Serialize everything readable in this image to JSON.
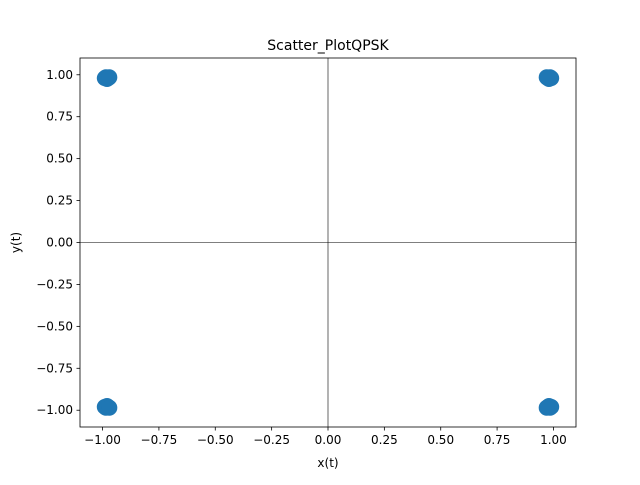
{
  "chart_data": {
    "type": "scatter",
    "title": "Scatter_PlotQPSK",
    "xlabel": "x(t)",
    "ylabel": "y(t)",
    "xlim": [
      -1.1,
      1.1
    ],
    "ylim": [
      -1.1,
      1.1
    ],
    "xticks": [
      -1.0,
      -0.75,
      -0.5,
      -0.25,
      0.0,
      0.25,
      0.5,
      0.75,
      1.0
    ],
    "xtick_labels": [
      "−1.00",
      "−0.75",
      "−0.50",
      "−0.25",
      "0.00",
      "0.25",
      "0.50",
      "0.75",
      "1.00"
    ],
    "yticks": [
      1.0,
      0.75,
      0.5,
      0.25,
      0.0,
      -0.25,
      -0.5,
      -0.75,
      -1.0
    ],
    "ytick_labels": [
      "1.00",
      "0.75",
      "0.50",
      "0.25",
      "0.00",
      "−0.25",
      "−0.50",
      "−0.75",
      "−1.00"
    ],
    "grid": false,
    "reference_lines": {
      "x": 0.0,
      "y": 0.0
    },
    "marker_color": "#1f77b4",
    "series": [
      {
        "points": [
          [
            -0.985,
            0.985
          ],
          [
            -0.975,
            0.98
          ],
          [
            -0.98,
            0.975
          ],
          [
            -0.99,
            0.98
          ],
          [
            -0.97,
            0.985
          ],
          [
            0.985,
            0.985
          ],
          [
            0.975,
            0.98
          ],
          [
            0.98,
            0.975
          ],
          [
            0.99,
            0.98
          ],
          [
            0.97,
            0.985
          ],
          [
            -0.985,
            -0.985
          ],
          [
            -0.975,
            -0.98
          ],
          [
            -0.98,
            -0.975
          ],
          [
            -0.99,
            -0.98
          ],
          [
            -0.97,
            -0.985
          ],
          [
            0.985,
            -0.985
          ],
          [
            0.975,
            -0.98
          ],
          [
            0.98,
            -0.975
          ],
          [
            0.99,
            -0.98
          ],
          [
            0.97,
            -0.985
          ]
        ]
      }
    ]
  }
}
